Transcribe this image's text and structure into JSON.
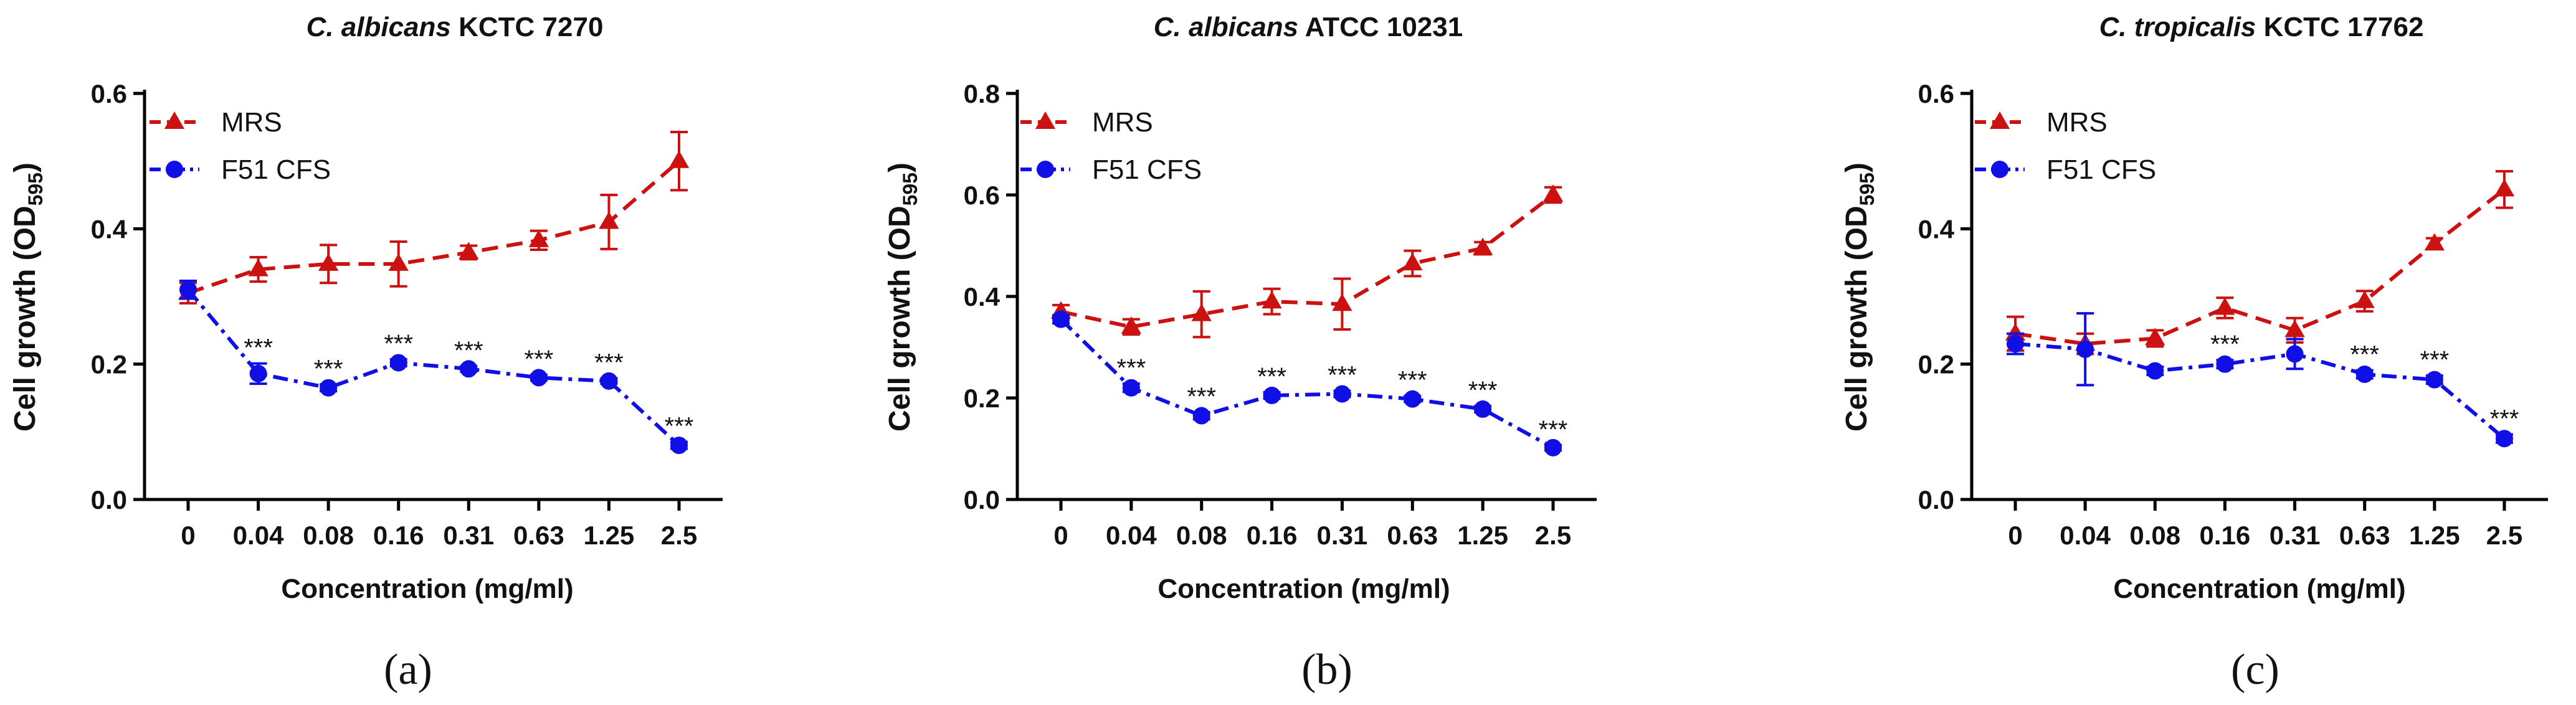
{
  "chart_data": [
    {
      "type": "line",
      "panel_label": "(a)",
      "title": {
        "species": "C. albicans",
        "strain": "KCTC 7270"
      },
      "xlabel": "Concentration (mg/ml)",
      "ylabel": {
        "main": "Cell growth (OD",
        "sub": "595",
        "end": ")"
      },
      "categories": [
        "0",
        "0.04",
        "0.08",
        "0.16",
        "0.31",
        "0.63",
        "1.25",
        "2.5"
      ],
      "ylim": [
        0,
        0.6
      ],
      "yticks": [
        "0.0",
        "0.2",
        "0.4",
        "0.6"
      ],
      "legend_position": "top-left",
      "series": [
        {
          "name": "MRS",
          "color": "#cc1111",
          "marker": "triangle",
          "line": "dashed",
          "values": [
            0.305,
            0.34,
            0.348,
            0.348,
            0.365,
            0.383,
            0.41,
            0.5
          ],
          "errors": [
            0.015,
            0.018,
            0.028,
            0.033,
            0.01,
            0.014,
            0.04,
            0.043
          ]
        },
        {
          "name": "F51 CFS",
          "color": "#1010e6",
          "marker": "circle",
          "line": "dashdot",
          "values": [
            0.31,
            0.186,
            0.165,
            0.202,
            0.193,
            0.18,
            0.175,
            0.08
          ],
          "errors": [
            0.013,
            0.015,
            0.005,
            0.005,
            0.004,
            0.004,
            0.004,
            0.005
          ]
        }
      ],
      "significance": [
        "",
        "***",
        "***",
        "***",
        "***",
        "***",
        "***",
        "***"
      ]
    },
    {
      "type": "line",
      "panel_label": "(b)",
      "title": {
        "species": "C. albicans",
        "strain": "ATCC 10231"
      },
      "xlabel": "Concentration (mg/ml)",
      "ylabel": {
        "main": "Cell growth (OD",
        "sub": "595",
        "end": ")"
      },
      "categories": [
        "0",
        "0.04",
        "0.08",
        "0.16",
        "0.31",
        "0.63",
        "1.25",
        "2.5"
      ],
      "ylim": [
        0,
        0.8
      ],
      "yticks": [
        "0.0",
        "0.2",
        "0.4",
        "0.6",
        "0.8"
      ],
      "legend_position": "top-left",
      "series": [
        {
          "name": "MRS",
          "color": "#cc1111",
          "marker": "triangle",
          "line": "dashed",
          "values": [
            0.37,
            0.34,
            0.365,
            0.39,
            0.385,
            0.465,
            0.495,
            0.6
          ],
          "errors": [
            0.013,
            0.015,
            0.045,
            0.025,
            0.05,
            0.025,
            0.012,
            0.015
          ]
        },
        {
          "name": "F51 CFS",
          "color": "#1010e6",
          "marker": "circle",
          "line": "dashdot",
          "values": [
            0.355,
            0.22,
            0.165,
            0.205,
            0.208,
            0.198,
            0.178,
            0.102
          ],
          "errors": [
            0.008,
            0.008,
            0.007,
            0.006,
            0.006,
            0.006,
            0.006,
            0.005
          ]
        }
      ],
      "significance": [
        "",
        "***",
        "***",
        "***",
        "***",
        "***",
        "***",
        "***"
      ]
    },
    {
      "type": "line",
      "panel_label": "(c)",
      "title": {
        "species": "C. tropicalis",
        "strain": "KCTC 17762"
      },
      "xlabel": "Concentration (mg/ml)",
      "ylabel": {
        "main": "Cell growth (OD",
        "sub": "595",
        "end": ")"
      },
      "categories": [
        "0",
        "0.04",
        "0.08",
        "0.16",
        "0.31",
        "0.63",
        "1.25",
        "2.5"
      ],
      "ylim": [
        0,
        0.6
      ],
      "yticks": [
        "0.0",
        "0.2",
        "0.4",
        "0.6"
      ],
      "legend_position": "top-left",
      "series": [
        {
          "name": "MRS",
          "color": "#cc1111",
          "marker": "triangle",
          "line": "dashed",
          "values": [
            0.245,
            0.23,
            0.238,
            0.283,
            0.25,
            0.293,
            0.378,
            0.458
          ],
          "errors": [
            0.025,
            0.015,
            0.012,
            0.015,
            0.018,
            0.015,
            0.008,
            0.027
          ]
        },
        {
          "name": "F51 CFS",
          "color": "#1010e6",
          "marker": "circle",
          "line": "dashdot",
          "values": [
            0.23,
            0.222,
            0.19,
            0.2,
            0.215,
            0.185,
            0.177,
            0.09
          ],
          "errors": [
            0.015,
            0.053,
            0.006,
            0.006,
            0.022,
            0.006,
            0.006,
            0.006
          ]
        }
      ],
      "significance": [
        "",
        "",
        "",
        "***",
        "",
        "***",
        "***",
        "***"
      ]
    }
  ]
}
